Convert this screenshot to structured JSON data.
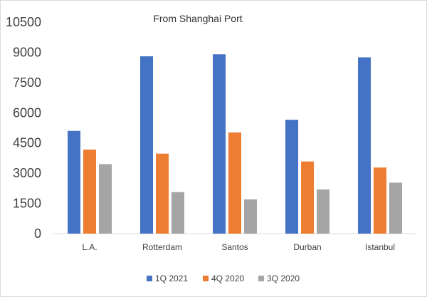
{
  "chart_data": {
    "type": "bar",
    "title": "From Shanghai Port",
    "xlabel": "",
    "ylabel": "",
    "ylim": [
      0,
      10500
    ],
    "yticks": [
      0,
      1500,
      3000,
      4500,
      6000,
      7500,
      9000,
      10500
    ],
    "ytick_labels": [
      "0",
      "1500",
      "3000",
      "4500",
      "6000",
      "7500",
      "9000",
      "10500"
    ],
    "categories": [
      "L.A.",
      "Rotterdam",
      "Santos",
      "Durban",
      "Istanbul"
    ],
    "series": [
      {
        "name": "1Q 2021",
        "color": "#4472c4",
        "values": [
          5100,
          8800,
          8900,
          5650,
          8750
        ]
      },
      {
        "name": "4Q 2020",
        "color": "#ed7d31",
        "values": [
          4170,
          3970,
          5020,
          3580,
          3280
        ]
      },
      {
        "name": "3Q 2020",
        "color": "#a5a5a5",
        "values": [
          3450,
          2060,
          1700,
          2190,
          2530
        ]
      }
    ],
    "grid": false,
    "legend_position": "bottom"
  }
}
